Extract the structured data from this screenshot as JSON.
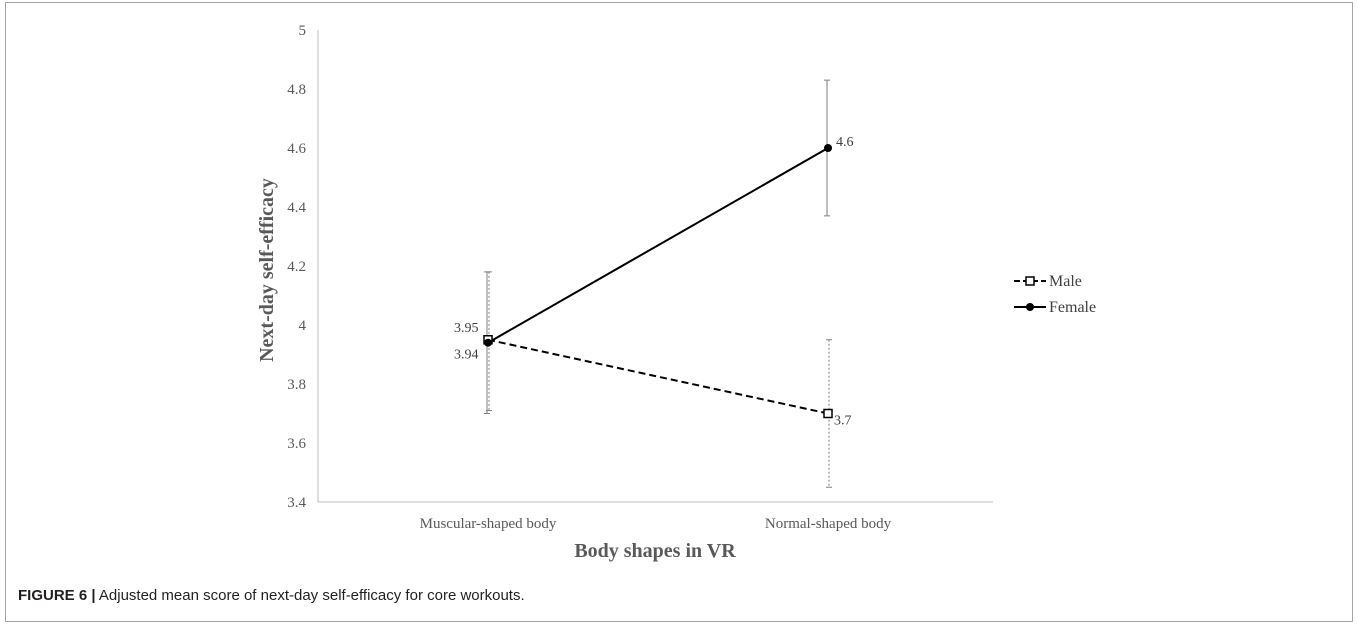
{
  "caption": {
    "label": "FIGURE 6 |",
    "text": "Adjusted mean score of next-day self-efficacy for core workouts."
  },
  "chart_data": {
    "type": "line",
    "title": "",
    "xlabel": "Body shapes in VR",
    "ylabel": "Next-day self-efficacy",
    "categories": [
      "Muscular-shaped body",
      "Normal-shaped body"
    ],
    "ylim": [
      3.4,
      5
    ],
    "yticks": [
      "3.4",
      "3.6",
      "3.8",
      "4",
      "4.2",
      "4.4",
      "4.6",
      "4.8",
      "5"
    ],
    "grid": false,
    "legend_position": "right",
    "series": [
      {
        "name": "Male",
        "values": [
          3.95,
          3.7
        ],
        "labels": [
          "3.95",
          "3.7"
        ],
        "error_low": [
          3.71,
          3.45
        ],
        "error_high": [
          4.18,
          3.95
        ],
        "line_style": "dashed",
        "marker": "open-square",
        "color": "#000000"
      },
      {
        "name": "Female",
        "values": [
          3.94,
          4.6
        ],
        "labels": [
          "3.94",
          "4.6"
        ],
        "error_low": [
          3.7,
          4.37
        ],
        "error_high": [
          4.18,
          4.83
        ],
        "line_style": "solid",
        "marker": "filled-circle",
        "color": "#000000"
      }
    ]
  }
}
